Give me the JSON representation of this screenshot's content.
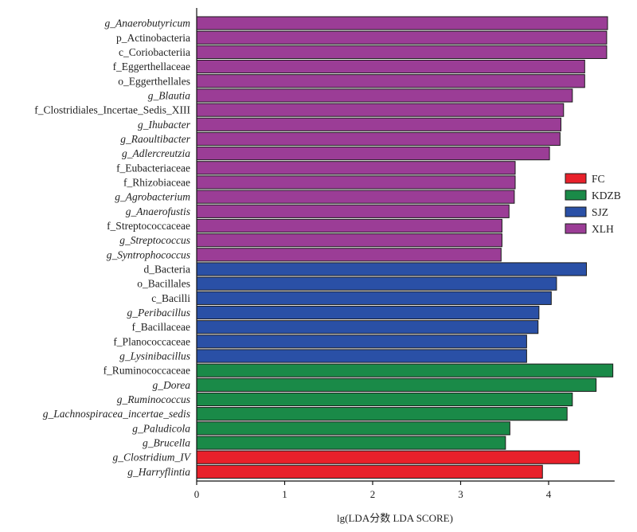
{
  "chart_data": {
    "type": "bar",
    "orientation": "horizontal",
    "xlabel": "lg(LDA分数 LDA SCORE)",
    "xlim": [
      0,
      4.75
    ],
    "xticks": [
      0,
      1,
      2,
      3,
      4
    ],
    "grid": false,
    "legend_position": "right",
    "legend": [
      {
        "name": "FC",
        "color": "#e8212b"
      },
      {
        "name": "KDZB",
        "color": "#1a8a48"
      },
      {
        "name": "SJZ",
        "color": "#2a50a6"
      },
      {
        "name": "XLH",
        "color": "#9b3d96"
      }
    ],
    "bars": [
      {
        "label": "g_Anaerobutyricum",
        "value": 4.67,
        "group": "XLH",
        "italic": true
      },
      {
        "label": "p_Actinobacteria",
        "value": 4.66,
        "group": "XLH",
        "italic": false
      },
      {
        "label": "c_Coriobacteriia",
        "value": 4.66,
        "group": "XLH",
        "italic": false
      },
      {
        "label": "f_Eggerthellaceae",
        "value": 4.41,
        "group": "XLH",
        "italic": false
      },
      {
        "label": "o_Eggerthellales",
        "value": 4.41,
        "group": "XLH",
        "italic": false
      },
      {
        "label": "g_Blautia",
        "value": 4.27,
        "group": "XLH",
        "italic": true
      },
      {
        "label": "f_Clostridiales_Incertae_Sedis_XIII",
        "value": 4.17,
        "group": "XLH",
        "italic": false
      },
      {
        "label": "g_Ihubacter",
        "value": 4.14,
        "group": "XLH",
        "italic": true
      },
      {
        "label": "g_Raoultibacter",
        "value": 4.13,
        "group": "XLH",
        "italic": true
      },
      {
        "label": "g_Adlercreutzia",
        "value": 4.01,
        "group": "XLH",
        "italic": true
      },
      {
        "label": "f_Eubacteriaceae",
        "value": 3.62,
        "group": "XLH",
        "italic": false
      },
      {
        "label": "f_Rhizobiaceae",
        "value": 3.62,
        "group": "XLH",
        "italic": false
      },
      {
        "label": "g_Agrobacterium",
        "value": 3.61,
        "group": "XLH",
        "italic": true
      },
      {
        "label": "g_Anaerofustis",
        "value": 3.55,
        "group": "XLH",
        "italic": true
      },
      {
        "label": "f_Streptococcaceae",
        "value": 3.47,
        "group": "XLH",
        "italic": false
      },
      {
        "label": "g_Streptococcus",
        "value": 3.47,
        "group": "XLH",
        "italic": true
      },
      {
        "label": "g_Syntrophococcus",
        "value": 3.46,
        "group": "XLH",
        "italic": true
      },
      {
        "label": "d_Bacteria",
        "value": 4.43,
        "group": "SJZ",
        "italic": false
      },
      {
        "label": "o_Bacillales",
        "value": 4.09,
        "group": "SJZ",
        "italic": false
      },
      {
        "label": "c_Bacilli",
        "value": 4.03,
        "group": "SJZ",
        "italic": false
      },
      {
        "label": "g_Peribacillus",
        "value": 3.89,
        "group": "SJZ",
        "italic": true
      },
      {
        "label": "f_Bacillaceae",
        "value": 3.88,
        "group": "SJZ",
        "italic": false
      },
      {
        "label": "f_Planococcaceae",
        "value": 3.75,
        "group": "SJZ",
        "italic": false
      },
      {
        "label": "g_Lysinibacillus",
        "value": 3.75,
        "group": "SJZ",
        "italic": true
      },
      {
        "label": "f_Ruminococcaceae",
        "value": 4.73,
        "group": "KDZB",
        "italic": false
      },
      {
        "label": "g_Dorea",
        "value": 4.54,
        "group": "KDZB",
        "italic": true
      },
      {
        "label": "g_Ruminococcus",
        "value": 4.27,
        "group": "KDZB",
        "italic": true
      },
      {
        "label": "g_Lachnospiracea_incertae_sedis",
        "value": 4.21,
        "group": "KDZB",
        "italic": true
      },
      {
        "label": "g_Paludicola",
        "value": 3.56,
        "group": "KDZB",
        "italic": true
      },
      {
        "label": "g_Brucella",
        "value": 3.51,
        "group": "KDZB",
        "italic": true
      },
      {
        "label": "g_Clostridium_IV",
        "value": 4.35,
        "group": "FC",
        "italic": true
      },
      {
        "label": "g_Harryflintia",
        "value": 3.93,
        "group": "FC",
        "italic": true
      }
    ]
  }
}
